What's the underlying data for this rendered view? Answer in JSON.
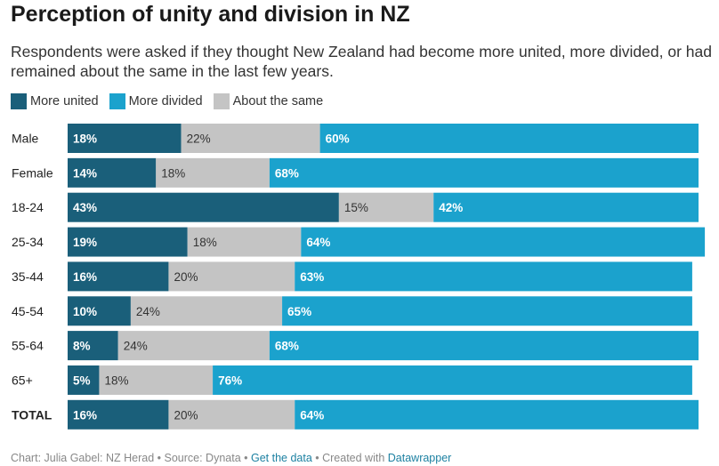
{
  "title": "Perception of unity and division in NZ",
  "subtitle": "Respondents were asked if they thought New Zealand had become more united, more divided, or had remained about the same in the last few years.",
  "colors": {
    "more_united": "#1a5f7a",
    "more_divided": "#1ba2cd",
    "about_same": "#c4c4c4"
  },
  "footer": {
    "part1": "Chart: Julia Gabel: NZ Herad • Source: Dynata • ",
    "link1": "Get the data",
    "part2": " • Created with ",
    "link2": "Datawrapper"
  },
  "chart_data": {
    "type": "bar",
    "orientation": "horizontal",
    "stacked": true,
    "categories": [
      "Male",
      "Female",
      "18-24",
      "25-34",
      "35-44",
      "45-54",
      "55-64",
      "65+",
      "TOTAL"
    ],
    "series": [
      {
        "name": "More united",
        "values": [
          18,
          14,
          43,
          19,
          16,
          10,
          8,
          5,
          16
        ]
      },
      {
        "name": "About the same",
        "values": [
          22,
          18,
          15,
          18,
          20,
          24,
          24,
          18,
          20
        ]
      },
      {
        "name": "More divided",
        "values": [
          60,
          68,
          42,
          64,
          63,
          65,
          68,
          76,
          64
        ]
      }
    ],
    "legend": {
      "placement": "top-left",
      "entries": [
        "More united",
        "More divided",
        "About the same"
      ]
    },
    "title": "Perception of unity and division in NZ",
    "xlabel": "",
    "ylabel": "",
    "xlim": [
      0,
      100
    ],
    "grid": false,
    "value_suffix": "%"
  }
}
